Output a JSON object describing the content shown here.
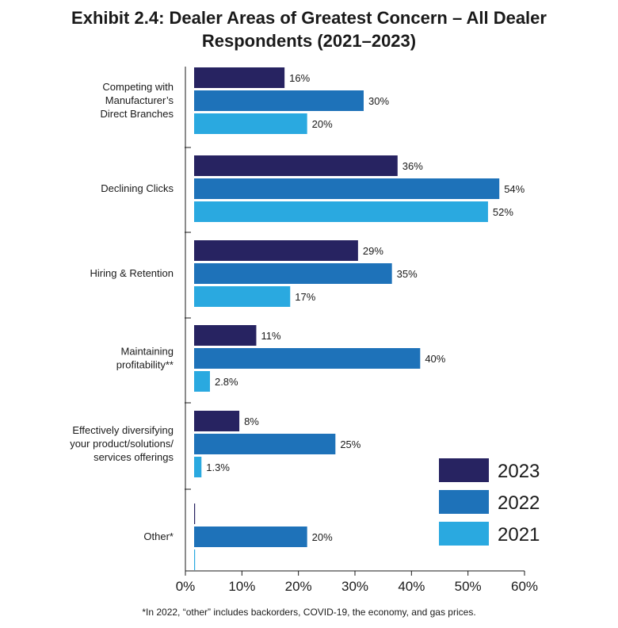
{
  "chart_data": {
    "type": "bar",
    "orientation": "horizontal",
    "title_lines": [
      "Exhibit 2.4: Dealer Areas of Greatest Concern – All Dealer",
      "Respondents (2021–2023)"
    ],
    "categories": [
      [
        "Competing with",
        "Manufacturer’s",
        "Direct Branches"
      ],
      [
        "Declining Clicks"
      ],
      [
        "Hiring & Retention"
      ],
      [
        "Maintaining",
        "profitability**"
      ],
      [
        "Effectively diversifying",
        "your product/solutions/",
        "services offerings"
      ],
      [
        "Other*"
      ]
    ],
    "series": [
      {
        "name": "2023",
        "color": "#272361",
        "values": [
          16,
          36,
          29,
          11,
          8,
          0
        ],
        "labels": [
          "16%",
          "36%",
          "29%",
          "11%",
          "8%",
          ""
        ]
      },
      {
        "name": "2022",
        "color": "#1e72b9",
        "values": [
          30,
          54,
          35,
          40,
          25,
          20
        ],
        "labels": [
          "30%",
          "54%",
          "35%",
          "40%",
          "25%",
          "20%"
        ]
      },
      {
        "name": "2021",
        "color": "#2aa9e0",
        "values": [
          20,
          52,
          17,
          2.8,
          1.3,
          0
        ],
        "labels": [
          "20%",
          "52%",
          "17%",
          "2.8%",
          "1.3%",
          ""
        ]
      }
    ],
    "xlim": [
      0,
      60
    ],
    "x_ticks": [
      0,
      10,
      20,
      30,
      40,
      50,
      60
    ],
    "x_tick_labels": [
      "0%",
      "10%",
      "20%",
      "30%",
      "40%",
      "50%",
      "60%"
    ],
    "legend_position": "bottom-right",
    "grid": false
  },
  "footnote": "*In 2022, “other” includes backorders, COVID-19, the economy, and gas prices."
}
